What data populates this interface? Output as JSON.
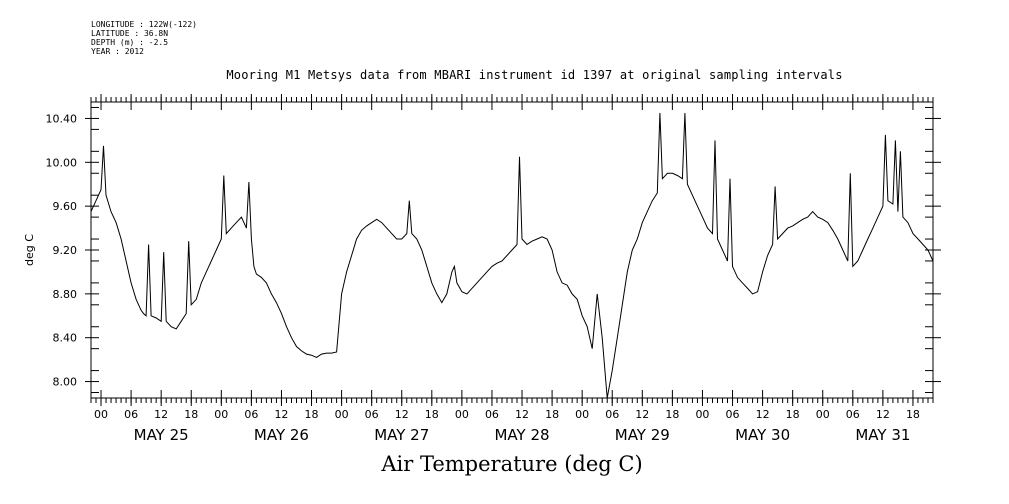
{
  "meta": {
    "longitude": "LONGITUDE : 122W(-122)",
    "latitude": "LATITUDE : 36.8N",
    "depth": "DEPTH (m) : -2.5",
    "year": "YEAR : 2012"
  },
  "chart_data": {
    "type": "line",
    "title": "Mooring M1 Metsys data from MBARI instrument id 1397 at original sampling intervals",
    "bottom_title": "Air Temperature (deg C)",
    "ylabel": "deg C",
    "xlabel": "",
    "ylim": [
      7.85,
      10.55
    ],
    "y_ticks": [
      "8.00",
      "8.40",
      "8.80",
      "9.20",
      "9.60",
      "10.00",
      "10.40"
    ],
    "x_hour_ticks": [
      "00",
      "06",
      "12",
      "18",
      "00",
      "06",
      "12",
      "18",
      "00",
      "06",
      "12",
      "18",
      "00",
      "06",
      "12",
      "18",
      "00",
      "06",
      "12",
      "18",
      "00",
      "06",
      "12",
      "18",
      "00",
      "06",
      "12",
      "18"
    ],
    "x_day_labels": [
      "MAY 25",
      "MAY 26",
      "MAY 27",
      "MAY 28",
      "MAY 29",
      "MAY 30",
      "MAY 31"
    ],
    "xlim_hours": [
      -2,
      166
    ],
    "grid": false,
    "series": [
      {
        "color": "#000000",
        "points": [
          [
            -2,
            9.55
          ],
          [
            -1,
            9.65
          ],
          [
            0,
            9.75
          ],
          [
            0.5,
            10.15
          ],
          [
            1,
            9.7
          ],
          [
            2,
            9.55
          ],
          [
            3,
            9.45
          ],
          [
            4,
            9.3
          ],
          [
            5,
            9.1
          ],
          [
            6,
            8.9
          ],
          [
            7,
            8.75
          ],
          [
            8,
            8.65
          ],
          [
            8.5,
            8.62
          ],
          [
            9,
            8.6
          ],
          [
            9.5,
            9.25
          ],
          [
            10,
            8.6
          ],
          [
            11,
            8.58
          ],
          [
            12,
            8.55
          ],
          [
            12.5,
            9.18
          ],
          [
            13,
            8.55
          ],
          [
            14,
            8.5
          ],
          [
            15,
            8.48
          ],
          [
            16,
            8.55
          ],
          [
            17,
            8.62
          ],
          [
            17.5,
            9.28
          ],
          [
            18,
            8.7
          ],
          [
            19,
            8.75
          ],
          [
            20,
            8.9
          ],
          [
            21,
            9.0
          ],
          [
            22,
            9.1
          ],
          [
            23,
            9.2
          ],
          [
            24,
            9.3
          ],
          [
            24.5,
            9.88
          ],
          [
            25,
            9.35
          ],
          [
            26,
            9.4
          ],
          [
            27,
            9.45
          ],
          [
            28,
            9.5
          ],
          [
            28.5,
            9.45
          ],
          [
            29,
            9.4
          ],
          [
            29.5,
            9.82
          ],
          [
            30,
            9.3
          ],
          [
            30.5,
            9.05
          ],
          [
            31,
            8.98
          ],
          [
            32,
            8.95
          ],
          [
            33,
            8.9
          ],
          [
            34,
            8.8
          ],
          [
            35,
            8.72
          ],
          [
            36,
            8.62
          ],
          [
            37,
            8.5
          ],
          [
            38,
            8.4
          ],
          [
            39,
            8.32
          ],
          [
            40,
            8.28
          ],
          [
            41,
            8.25
          ],
          [
            42,
            8.24
          ],
          [
            43,
            8.22
          ],
          [
            44,
            8.25
          ],
          [
            45,
            8.26
          ],
          [
            46,
            8.26
          ],
          [
            47,
            8.27
          ],
          [
            48,
            8.8
          ],
          [
            49,
            9.0
          ],
          [
            50,
            9.15
          ],
          [
            51,
            9.3
          ],
          [
            52,
            9.38
          ],
          [
            53,
            9.42
          ],
          [
            54,
            9.45
          ],
          [
            55,
            9.48
          ],
          [
            56,
            9.45
          ],
          [
            57,
            9.4
          ],
          [
            58,
            9.35
          ],
          [
            59,
            9.3
          ],
          [
            60,
            9.3
          ],
          [
            61,
            9.35
          ],
          [
            61.5,
            9.65
          ],
          [
            62,
            9.35
          ],
          [
            63,
            9.3
          ],
          [
            64,
            9.2
          ],
          [
            65,
            9.05
          ],
          [
            66,
            8.9
          ],
          [
            67,
            8.8
          ],
          [
            68,
            8.72
          ],
          [
            69,
            8.8
          ],
          [
            70,
            9.0
          ],
          [
            70.5,
            9.05
          ],
          [
            71,
            8.9
          ],
          [
            72,
            8.82
          ],
          [
            73,
            8.8
          ],
          [
            74,
            8.85
          ],
          [
            75,
            8.9
          ],
          [
            76,
            8.95
          ],
          [
            77,
            9.0
          ],
          [
            78,
            9.05
          ],
          [
            79,
            9.08
          ],
          [
            80,
            9.1
          ],
          [
            81,
            9.15
          ],
          [
            82,
            9.2
          ],
          [
            83,
            9.25
          ],
          [
            83.5,
            10.05
          ],
          [
            84,
            9.3
          ],
          [
            85,
            9.25
          ],
          [
            86,
            9.28
          ],
          [
            87,
            9.3
          ],
          [
            88,
            9.32
          ],
          [
            89,
            9.3
          ],
          [
            90,
            9.2
          ],
          [
            91,
            9.0
          ],
          [
            92,
            8.9
          ],
          [
            93,
            8.88
          ],
          [
            94,
            8.8
          ],
          [
            95,
            8.75
          ],
          [
            96,
            8.6
          ],
          [
            97,
            8.5
          ],
          [
            98,
            8.3
          ],
          [
            98.5,
            8.55
          ],
          [
            99,
            8.8
          ],
          [
            99.5,
            8.6
          ],
          [
            100,
            8.4
          ],
          [
            101,
            7.85
          ],
          [
            102,
            8.1
          ],
          [
            103,
            8.4
          ],
          [
            104,
            8.7
          ],
          [
            105,
            9.0
          ],
          [
            106,
            9.2
          ],
          [
            107,
            9.3
          ],
          [
            108,
            9.45
          ],
          [
            109,
            9.55
          ],
          [
            110,
            9.65
          ],
          [
            111,
            9.72
          ],
          [
            111.5,
            10.45
          ],
          [
            112,
            9.85
          ],
          [
            113,
            9.9
          ],
          [
            114,
            9.9
          ],
          [
            115,
            9.88
          ],
          [
            116,
            9.85
          ],
          [
            116.5,
            10.45
          ],
          [
            117,
            9.8
          ],
          [
            118,
            9.7
          ],
          [
            119,
            9.6
          ],
          [
            120,
            9.5
          ],
          [
            121,
            9.4
          ],
          [
            122,
            9.35
          ],
          [
            122.5,
            10.2
          ],
          [
            123,
            9.3
          ],
          [
            124,
            9.2
          ],
          [
            125,
            9.1
          ],
          [
            125.5,
            9.85
          ],
          [
            126,
            9.05
          ],
          [
            127,
            8.95
          ],
          [
            128,
            8.9
          ],
          [
            129,
            8.85
          ],
          [
            130,
            8.8
          ],
          [
            131,
            8.82
          ],
          [
            132,
            9.0
          ],
          [
            133,
            9.15
          ],
          [
            134,
            9.25
          ],
          [
            134.5,
            9.78
          ],
          [
            135,
            9.3
          ],
          [
            136,
            9.35
          ],
          [
            137,
            9.4
          ],
          [
            138,
            9.42
          ],
          [
            139,
            9.45
          ],
          [
            140,
            9.48
          ],
          [
            141,
            9.5
          ],
          [
            142,
            9.55
          ],
          [
            143,
            9.5
          ],
          [
            144,
            9.48
          ],
          [
            145,
            9.45
          ],
          [
            146,
            9.38
          ],
          [
            147,
            9.3
          ],
          [
            148,
            9.2
          ],
          [
            149,
            9.1
          ],
          [
            149.5,
            9.9
          ],
          [
            150,
            9.05
          ],
          [
            151,
            9.1
          ],
          [
            152,
            9.2
          ],
          [
            153,
            9.3
          ],
          [
            154,
            9.4
          ],
          [
            155,
            9.5
          ],
          [
            156,
            9.6
          ],
          [
            156.5,
            10.25
          ],
          [
            157,
            9.65
          ],
          [
            158,
            9.62
          ],
          [
            158.5,
            10.2
          ],
          [
            159,
            9.55
          ],
          [
            159.5,
            10.1
          ],
          [
            160,
            9.5
          ],
          [
            161,
            9.45
          ],
          [
            162,
            9.35
          ],
          [
            163,
            9.3
          ],
          [
            164,
            9.25
          ],
          [
            165,
            9.2
          ],
          [
            166,
            9.1
          ]
        ]
      }
    ]
  }
}
